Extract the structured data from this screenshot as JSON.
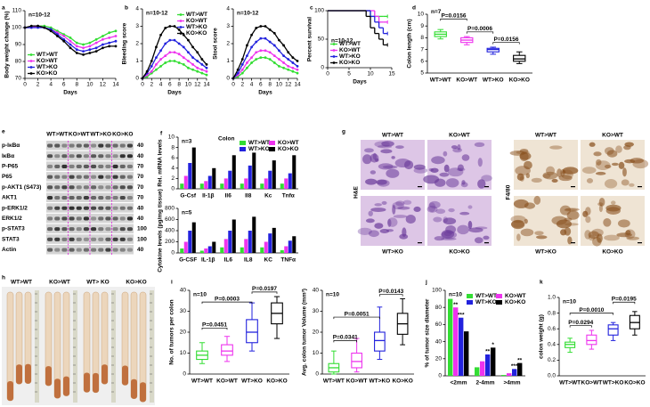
{
  "chart_data": [
    {
      "type": "line",
      "panel": "a",
      "ylabel": "Body weight change (%)",
      "xlabel": "Days",
      "note": "n=10-12",
      "x": [
        0,
        1,
        2,
        3,
        4,
        5,
        6,
        7,
        8,
        9,
        10,
        11,
        12,
        13,
        14
      ],
      "xlim": [
        0,
        14
      ],
      "xticks": [
        0,
        2,
        4,
        6,
        8,
        10,
        12,
        14
      ],
      "ylim": [
        70,
        110
      ],
      "yticks": [
        70,
        80,
        90,
        100,
        110
      ],
      "legend": "lower left",
      "series": [
        {
          "name": "WT>WT",
          "color": "#33dd33",
          "values": [
            100,
            100,
            101,
            101,
            100,
            98,
            96,
            94,
            91,
            90,
            91,
            93,
            95,
            97,
            98
          ]
        },
        {
          "name": "KO>WT",
          "color": "#ee33ee",
          "values": [
            100,
            100,
            101,
            100,
            99,
            97,
            95,
            92,
            89,
            88,
            89,
            91,
            93,
            94,
            95
          ]
        },
        {
          "name": "WT>KO",
          "color": "#2222dd",
          "values": [
            100,
            100,
            100,
            100,
            99,
            96,
            93,
            90,
            87,
            86,
            87,
            88,
            90,
            91,
            92
          ]
        },
        {
          "name": "KO>KO",
          "color": "#000000",
          "values": [
            100,
            101,
            101,
            100,
            98,
            95,
            92,
            88,
            85,
            84,
            85,
            86,
            88,
            89,
            89
          ]
        }
      ]
    },
    {
      "type": "line",
      "panel": "b",
      "ylabel": "Bleeding score",
      "xlabel": "Days",
      "note": "n=10-12",
      "x": [
        0,
        1,
        2,
        3,
        4,
        5,
        6,
        7,
        8,
        9,
        10,
        11,
        12,
        13,
        14
      ],
      "xlim": [
        0,
        14
      ],
      "xticks": [
        0,
        2,
        4,
        6,
        8,
        10,
        12,
        14
      ],
      "ylim": [
        0,
        4
      ],
      "yticks": [
        0,
        1,
        2,
        3,
        4
      ],
      "legend": "upper right",
      "series": [
        {
          "name": "WT>WT",
          "color": "#33dd33",
          "values": [
            0,
            0.1,
            0.3,
            0.5,
            0.7,
            0.9,
            1.0,
            1.0,
            0.9,
            0.8,
            0.6,
            0.5,
            0.4,
            0.3,
            0.2
          ]
        },
        {
          "name": "KO>WT",
          "color": "#ee33ee",
          "values": [
            0,
            0.2,
            0.4,
            0.8,
            1.1,
            1.3,
            1.5,
            1.5,
            1.4,
            1.2,
            1.0,
            0.8,
            0.6,
            0.5,
            0.4
          ]
        },
        {
          "name": "WT>KO",
          "color": "#2222dd",
          "values": [
            0,
            0.3,
            0.7,
            1.2,
            1.6,
            2.0,
            2.2,
            2.2,
            2.0,
            1.8,
            1.5,
            1.2,
            1.0,
            0.8,
            0.6
          ]
        },
        {
          "name": "KO>KO",
          "color": "#000000",
          "values": [
            0,
            0.4,
            1.0,
            1.8,
            2.5,
            2.9,
            3.0,
            3.0,
            2.8,
            2.5,
            2.2,
            1.8,
            1.5,
            1.1,
            0.8
          ]
        }
      ]
    },
    {
      "type": "line",
      "ylabel": "Stool score",
      "xlabel": "Days",
      "note": "n=10-12",
      "x": [
        0,
        1,
        2,
        3,
        4,
        5,
        6,
        7,
        8,
        9,
        10,
        11,
        12,
        13,
        14
      ],
      "xlim": [
        0,
        14
      ],
      "xticks": [
        0,
        2,
        4,
        6,
        8,
        10,
        12,
        14
      ],
      "ylim": [
        0,
        4
      ],
      "yticks": [
        0,
        1,
        2,
        3,
        4
      ],
      "series": [
        {
          "color": "#33dd33",
          "values": [
            0,
            0.1,
            0.3,
            0.6,
            0.9,
            1.1,
            1.2,
            1.2,
            1.1,
            0.9,
            0.7,
            0.6,
            0.5,
            0.4,
            0.3
          ]
        },
        {
          "color": "#ee33ee",
          "values": [
            0,
            0.2,
            0.5,
            0.9,
            1.2,
            1.5,
            1.6,
            1.6,
            1.5,
            1.3,
            1.1,
            0.9,
            0.7,
            0.6,
            0.5
          ]
        },
        {
          "color": "#2222dd",
          "values": [
            0,
            0.3,
            0.8,
            1.3,
            1.8,
            2.1,
            2.3,
            2.3,
            2.1,
            1.9,
            1.6,
            1.3,
            1.1,
            0.9,
            0.7
          ]
        },
        {
          "color": "#000000",
          "values": [
            0,
            0.5,
            1.1,
            1.9,
            2.5,
            2.9,
            3.0,
            3.0,
            2.8,
            2.6,
            2.2,
            1.9,
            1.5,
            1.2,
            1.0
          ]
        }
      ]
    },
    {
      "type": "step",
      "panel": "c",
      "ylabel": "Percent survival",
      "xlabel": "Days",
      "note": "n=10-12",
      "x": [
        0,
        9,
        10,
        11,
        12,
        13,
        14
      ],
      "xlim": [
        0,
        15
      ],
      "xticks": [
        0,
        5,
        10,
        15
      ],
      "ylim": [
        0,
        100
      ],
      "yticks": [
        0,
        50,
        100
      ],
      "legend": "lower left",
      "series": [
        {
          "name": "WT>WT",
          "color": "#33dd33",
          "values": [
            100,
            100,
            90,
            90,
            90,
            90,
            90
          ]
        },
        {
          "name": "KO>WT",
          "color": "#ee33ee",
          "values": [
            100,
            100,
            100,
            90,
            80,
            80,
            80
          ]
        },
        {
          "name": "WT>KO",
          "color": "#2222dd",
          "values": [
            100,
            100,
            90,
            80,
            70,
            60,
            60
          ]
        },
        {
          "name": "KO>KO",
          "color": "#000000",
          "values": [
            100,
            90,
            70,
            60,
            50,
            40,
            40
          ]
        }
      ]
    },
    {
      "type": "box",
      "panel": "d",
      "ylabel": "Colon length (cm)",
      "note": "n=7",
      "categories": [
        "WT>WT",
        "KO>WT",
        "WT>KO",
        "KO>KO"
      ],
      "colors": [
        "#33dd33",
        "#ee33ee",
        "#2222dd",
        "#000000"
      ],
      "ylim": [
        5,
        10
      ],
      "yticks": [
        5,
        6,
        7,
        8,
        9,
        10
      ],
      "boxes": [
        {
          "min": 7.9,
          "q1": 8.1,
          "median": 8.3,
          "q3": 8.5,
          "max": 8.7
        },
        {
          "min": 7.4,
          "q1": 7.6,
          "median": 7.8,
          "q3": 8.0,
          "max": 8.1
        },
        {
          "min": 6.6,
          "q1": 6.8,
          "median": 7.0,
          "q3": 7.1,
          "max": 7.2
        },
        {
          "min": 5.8,
          "q1": 6.0,
          "median": 6.2,
          "q3": 6.5,
          "max": 6.8
        }
      ],
      "annotations": [
        "P=0.0156",
        "P=0.0006",
        "P=0.0156"
      ]
    },
    {
      "type": "bar",
      "panel": "f",
      "subtitle": "Colon",
      "ylabel": "Rel. mRNA levels",
      "note": "n=3",
      "categories": [
        "G-Csf",
        "Il-1β",
        "Il6",
        "Il8",
        "Kc",
        "Tnfα"
      ],
      "ylim": [
        0,
        10
      ],
      "yticks": [
        0,
        2,
        4,
        6,
        8,
        10
      ],
      "legend": "upper right",
      "series": [
        {
          "name": "WT>WT",
          "color": "#33dd33",
          "values": [
            1,
            1,
            1,
            1,
            1,
            1
          ]
        },
        {
          "name": "KO>WT",
          "color": "#ee33ee",
          "values": [
            2.5,
            1.5,
            2,
            2,
            2,
            2
          ]
        },
        {
          "name": "WT>KO",
          "color": "#2222dd",
          "values": [
            5,
            2.5,
            3.5,
            4.5,
            3.5,
            3
          ]
        },
        {
          "name": "KO>KO",
          "color": "#000000",
          "values": [
            8,
            4,
            6.5,
            7,
            5.5,
            6.5
          ]
        }
      ]
    },
    {
      "type": "bar",
      "ylabel": "Cytokine levels (pg/mg tissue)",
      "note": "n=5",
      "categories": [
        "G-CSF",
        "IL-1β",
        "IL6",
        "IL8",
        "KC",
        "TNFα"
      ],
      "ylim": [
        0,
        800
      ],
      "yticks": [
        0,
        200,
        400,
        600,
        800
      ],
      "series": [
        {
          "color": "#33dd33",
          "values": [
            80,
            40,
            100,
            100,
            100,
            50
          ]
        },
        {
          "color": "#ee33ee",
          "values": [
            200,
            80,
            250,
            250,
            200,
            120
          ]
        },
        {
          "color": "#2222dd",
          "values": [
            400,
            120,
            400,
            400,
            350,
            220
          ]
        },
        {
          "color": "#000000",
          "values": [
            550,
            200,
            600,
            650,
            450,
            300
          ]
        }
      ]
    },
    {
      "type": "box",
      "panel": "i",
      "ylabel": "No. of tumors per colon",
      "note": "n=10",
      "categories": [
        "WT>WT",
        "KO>WT",
        "WT>KO",
        "KO>KO"
      ],
      "colors": [
        "#33dd33",
        "#ee33ee",
        "#2222dd",
        "#000000"
      ],
      "ylim": [
        0,
        40
      ],
      "yticks": [
        0,
        10,
        20,
        30,
        40
      ],
      "boxes": [
        {
          "min": 5,
          "q1": 7,
          "median": 9,
          "q3": 11,
          "max": 15
        },
        {
          "min": 6,
          "q1": 9,
          "median": 11,
          "q3": 14,
          "max": 18
        },
        {
          "min": 11,
          "q1": 15,
          "median": 20,
          "q3": 26,
          "max": 34
        },
        {
          "min": 17,
          "q1": 24,
          "median": 29,
          "q3": 34,
          "max": 37
        }
      ],
      "annotations": [
        "P=0.0451",
        "P=0.0003",
        "P=0.0197"
      ]
    },
    {
      "type": "box",
      "ylabel": "Avg. colon tumor Volume (mm³)",
      "note": "n=10",
      "categories": [
        "WT>WT",
        "KO>WT",
        "WT>KO",
        "KO>KO"
      ],
      "colors": [
        "#33dd33",
        "#ee33ee",
        "#2222dd",
        "#000000"
      ],
      "ylim": [
        0,
        40
      ],
      "yticks": [
        0,
        10,
        20,
        30,
        40
      ],
      "boxes": [
        {
          "min": 0,
          "q1": 1,
          "median": 3,
          "q3": 5,
          "max": 11
        },
        {
          "min": 1,
          "q1": 3,
          "median": 6,
          "q3": 10,
          "max": 17
        },
        {
          "min": 7,
          "q1": 11,
          "median": 16,
          "q3": 20,
          "max": 32
        },
        {
          "min": 14,
          "q1": 19,
          "median": 24,
          "q3": 29,
          "max": 36
        }
      ],
      "annotations": [
        "P=0.0341",
        "P=0.0051",
        "P=0.0143"
      ]
    },
    {
      "type": "bar",
      "panel": "j",
      "ylabel": "% of tumor size diameter",
      "note": "n=10",
      "categories": [
        "<2mm",
        "2-4mm",
        ">4mm"
      ],
      "ylim": [
        0,
        100
      ],
      "yticks": [
        0,
        20,
        40,
        60,
        80,
        100
      ],
      "legend": "upper right",
      "series": [
        {
          "name": "WT>WT",
          "color": "#33dd33",
          "values": [
            90,
            10,
            1
          ]
        },
        {
          "name": "KO>WT",
          "color": "#ee33ee",
          "values": [
            80,
            17,
            3
          ]
        },
        {
          "name": "WT>KO",
          "color": "#2222dd",
          "values": [
            68,
            25,
            8
          ]
        },
        {
          "name": "KO>KO",
          "color": "#000000",
          "values": [
            52,
            33,
            15
          ]
        }
      ],
      "annotations": [
        "**",
        "***",
        "**",
        "*",
        "***",
        "**"
      ]
    },
    {
      "type": "box",
      "panel": "k",
      "ylabel": "colon weight (g)",
      "note": "n=10",
      "categories": [
        "WT>WT",
        "KO>WT",
        "WT>KO",
        "KO>KO"
      ],
      "colors": [
        "#33dd33",
        "#ee33ee",
        "#2222dd",
        "#000000"
      ],
      "ylim": [
        0,
        1
      ],
      "yticks": [
        {
          "value": 0,
          "label": "0.0"
        },
        0.2,
        0.4,
        0.6,
        0.8,
        {
          "value": 1,
          "label": "1.0"
        }
      ],
      "boxes": [
        {
          "min": 0.3,
          "q1": 0.36,
          "median": 0.4,
          "q3": 0.43,
          "max": 0.48
        },
        {
          "min": 0.34,
          "q1": 0.4,
          "median": 0.45,
          "q3": 0.52,
          "max": 0.58
        },
        {
          "min": 0.45,
          "q1": 0.52,
          "median": 0.6,
          "q3": 0.65,
          "max": 0.68
        },
        {
          "min": 0.52,
          "q1": 0.6,
          "median": 0.68,
          "q3": 0.77,
          "max": 0.82
        }
      ],
      "annotations": [
        "P=0.0294",
        "P=0.0010",
        "P=0.0195"
      ]
    }
  ],
  "blot": {
    "panel": "e",
    "columns": [
      "WT>WT",
      "KO>WT",
      "WT>KO",
      "KO>KO"
    ],
    "rows": [
      {
        "label": "p-IκBα",
        "kda": 40
      },
      {
        "label": "IκBα",
        "kda": 40
      },
      {
        "label": "P-P65",
        "kda": 70
      },
      {
        "label": "P65",
        "kda": 70
      },
      {
        "label": "p-AKT1 (S473)",
        "kda": 70
      },
      {
        "label": "AKT1",
        "kda": 70
      },
      {
        "label": "p-ERK1/2",
        "kda": 40
      },
      {
        "label": "ERK1/2",
        "kda": 40
      },
      {
        "label": "p-STAT3",
        "kda": 100
      },
      {
        "label": "STAT3",
        "kda": 100
      },
      {
        "label": "Actin",
        "kda": 40
      }
    ]
  },
  "histology": {
    "panel": "g",
    "he": {
      "stain": "H&E",
      "labels": [
        "WT>WT",
        "KO>WT",
        "WT>KO",
        "KO>KO"
      ]
    },
    "f480": {
      "stain": "F4/80",
      "labels": [
        "WT>WT",
        "KO>WT",
        "WT>KO",
        "KO>KO"
      ]
    }
  },
  "photos": {
    "panel": "h",
    "labels": [
      "WT>WT",
      "KO>WT",
      "WT> KO",
      "KO>KO"
    ]
  }
}
